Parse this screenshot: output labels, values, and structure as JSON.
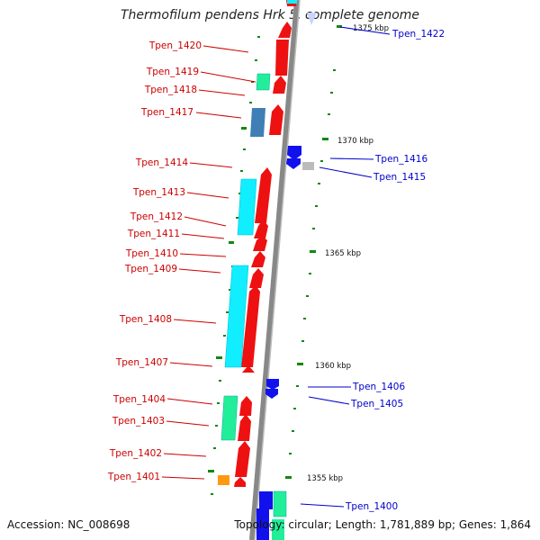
{
  "title": "Thermofilum pendens Hrk 5, complete genome",
  "accession": "Accession: NC_008698",
  "topology": "Topology: circular; Length: 1,781,889 bp; Genes: 1,864",
  "colors": {
    "red_gene": "#ee1111",
    "cyan_gene": "#11eeff",
    "green_gene": "#22ee99",
    "blue_gene": "#1111ee",
    "steel_gene": "#3f7fb5",
    "orange_gene": "#ff9911",
    "gray_gene": "#bbbbbb",
    "backbone": "#888888",
    "left_label": "#cc0000",
    "right_label": "#0000cc",
    "tick": "#118811"
  },
  "left_genes": [
    "Tpen_1420",
    "Tpen_1419",
    "Tpen_1418",
    "Tpen_1417",
    "Tpen_1414",
    "Tpen_1413",
    "Tpen_1412",
    "Tpen_1411",
    "Tpen_1410",
    "Tpen_1409",
    "Tpen_1408",
    "Tpen_1407",
    "Tpen_1404",
    "Tpen_1403",
    "Tpen_1402",
    "Tpen_1401"
  ],
  "right_genes": [
    "Tpen_1422",
    "Tpen_1416",
    "Tpen_1415",
    "Tpen_1406",
    "Tpen_1405",
    "Tpen_1400"
  ],
  "scale": [
    "1375 kbp",
    "1370 kbp",
    "1365 kbp",
    "1360 kbp",
    "1355 kbp"
  ]
}
